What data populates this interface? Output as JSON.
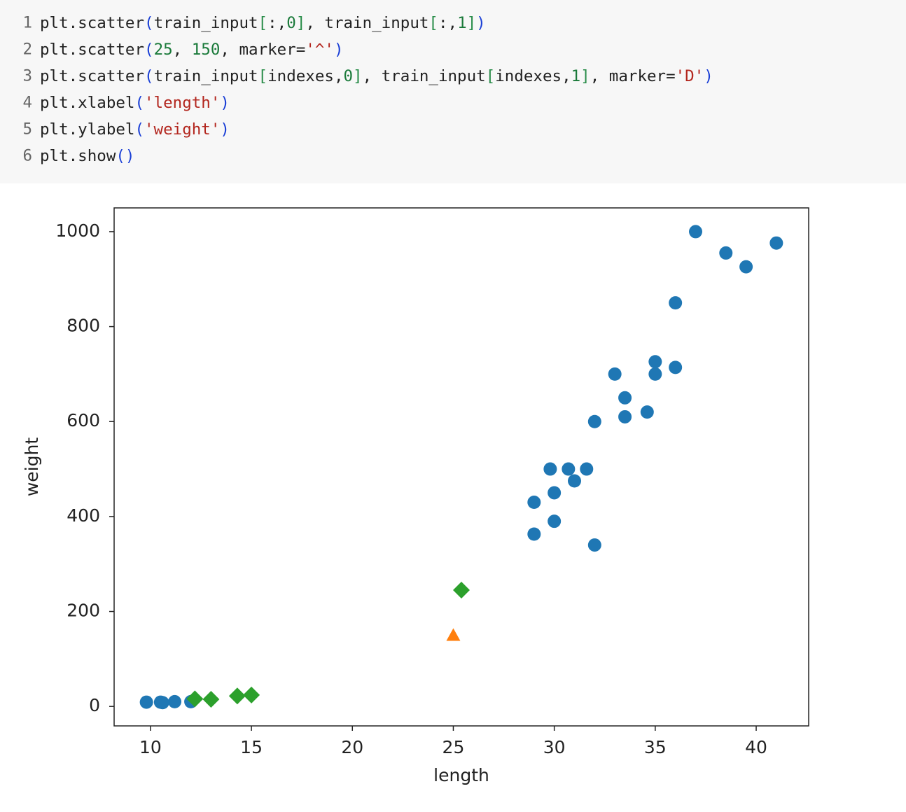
{
  "code": {
    "lines": [
      {
        "number": 1,
        "tokens": [
          {
            "text": "plt.scatter",
            "color": "#222222"
          },
          {
            "text": "(",
            "color": "#1a3fd6"
          },
          {
            "text": "train_input",
            "color": "#222222"
          },
          {
            "text": "[",
            "color": "#2a8d4a"
          },
          {
            "text": ":,",
            "color": "#222222"
          },
          {
            "text": "0",
            "color": "#1a7a3a"
          },
          {
            "text": "]",
            "color": "#2a8d4a"
          },
          {
            "text": ", ",
            "color": "#222222"
          },
          {
            "text": "train_input",
            "color": "#222222"
          },
          {
            "text": "[",
            "color": "#2a8d4a"
          },
          {
            "text": ":,",
            "color": "#222222"
          },
          {
            "text": "1",
            "color": "#1a7a3a"
          },
          {
            "text": "]",
            "color": "#2a8d4a"
          },
          {
            "text": ")",
            "color": "#1a3fd6"
          }
        ]
      },
      {
        "number": 2,
        "tokens": [
          {
            "text": "plt.scatter",
            "color": "#222222"
          },
          {
            "text": "(",
            "color": "#1a3fd6"
          },
          {
            "text": "25",
            "color": "#1a7a3a"
          },
          {
            "text": ", ",
            "color": "#222222"
          },
          {
            "text": "150",
            "color": "#1a7a3a"
          },
          {
            "text": ", marker=",
            "color": "#222222"
          },
          {
            "text": "'^'",
            "color": "#b3261e"
          },
          {
            "text": ")",
            "color": "#1a3fd6"
          }
        ]
      },
      {
        "number": 3,
        "tokens": [
          {
            "text": "plt.scatter",
            "color": "#222222"
          },
          {
            "text": "(",
            "color": "#1a3fd6"
          },
          {
            "text": "train_input",
            "color": "#222222"
          },
          {
            "text": "[",
            "color": "#2a8d4a"
          },
          {
            "text": "indexes,",
            "color": "#222222"
          },
          {
            "text": "0",
            "color": "#1a7a3a"
          },
          {
            "text": "]",
            "color": "#2a8d4a"
          },
          {
            "text": ", ",
            "color": "#222222"
          },
          {
            "text": "train_input",
            "color": "#222222"
          },
          {
            "text": "[",
            "color": "#2a8d4a"
          },
          {
            "text": "indexes,",
            "color": "#222222"
          },
          {
            "text": "1",
            "color": "#1a7a3a"
          },
          {
            "text": "]",
            "color": "#2a8d4a"
          },
          {
            "text": ", marker=",
            "color": "#222222"
          },
          {
            "text": "'D'",
            "color": "#b3261e"
          },
          {
            "text": ")",
            "color": "#1a3fd6"
          }
        ]
      },
      {
        "number": 4,
        "tokens": [
          {
            "text": "plt.xlabel",
            "color": "#222222"
          },
          {
            "text": "(",
            "color": "#1a3fd6"
          },
          {
            "text": "'length'",
            "color": "#b3261e"
          },
          {
            "text": ")",
            "color": "#1a3fd6"
          }
        ]
      },
      {
        "number": 5,
        "tokens": [
          {
            "text": "plt.ylabel",
            "color": "#222222"
          },
          {
            "text": "(",
            "color": "#1a3fd6"
          },
          {
            "text": "'weight'",
            "color": "#b3261e"
          },
          {
            "text": ")",
            "color": "#1a3fd6"
          }
        ]
      },
      {
        "number": 6,
        "tokens": [
          {
            "text": "plt.show",
            "color": "#222222"
          },
          {
            "text": "()",
            "color": "#1a3fd6"
          }
        ]
      }
    ]
  },
  "chart_data": {
    "type": "scatter",
    "x_label": "length",
    "y_label": "weight",
    "xlim": [
      8.2,
      42.6
    ],
    "ylim": [
      -41,
      1050
    ],
    "xticks": [
      10,
      15,
      20,
      25,
      30,
      35,
      40
    ],
    "yticks": [
      0,
      200,
      400,
      600,
      800,
      1000
    ],
    "series": [
      {
        "color": "#1f77b4",
        "marker": "o",
        "x": [
          37.0,
          38.5,
          39.5,
          41.0,
          36.0,
          35.0,
          35.0,
          36.0,
          33.0,
          33.5,
          33.5,
          34.6,
          32.0,
          29.8,
          30.7,
          31.6,
          31.0,
          30.0,
          29.0,
          30.0,
          29.0,
          32.0,
          9.8,
          10.5,
          10.6,
          11.2,
          12.0
        ],
        "y": [
          1000,
          955,
          926,
          976,
          850,
          726,
          700,
          714,
          700,
          650,
          610,
          620,
          600,
          500,
          500,
          500,
          475,
          450,
          430,
          390,
          363,
          340,
          9,
          9,
          8,
          10,
          10
        ]
      },
      {
        "color": "#ff7f0e",
        "marker": "^",
        "x": [
          25
        ],
        "y": [
          150
        ]
      },
      {
        "color": "#2ca02c",
        "marker": "D",
        "x": [
          12.2,
          13.0,
          14.3,
          15.0,
          25.4
        ],
        "y": [
          16,
          15,
          22,
          24,
          245
        ]
      }
    ]
  }
}
